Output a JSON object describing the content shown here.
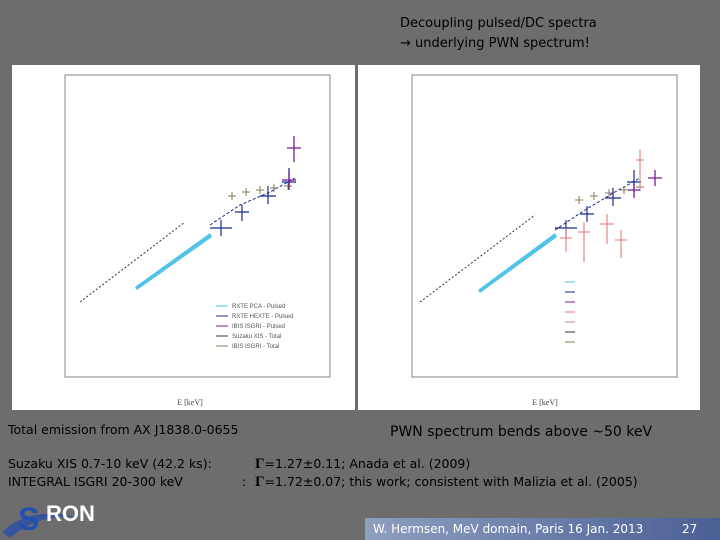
{
  "header": {
    "title_line1": "Decoupling pulsed/DC spectra",
    "title_line2": "→ underlying PWN spectrum!"
  },
  "left_plot": {
    "caption": "Total emission from AX J1838.0-0655",
    "x_label": "E [keV]",
    "legend": [
      "RXTE PCA - Pulsed",
      "RXTE HEXTE - Pulsed",
      "IBIS ISGRI - Pulsed",
      "Suzaku XIS - Total",
      "IBIS ISGRI - Total"
    ]
  },
  "right_plot": {
    "caption": "PWN spectrum bends above ~50 keV",
    "x_label": "E [keV]"
  },
  "notes": [
    {
      "instrument": "Suzaku XIS 0.7-10 keV (42.2 ks):",
      "gamma": "Γ",
      "result": "=1.27±0.11; Anada et al. (2009)"
    },
    {
      "instrument": "INTEGRAL ISGRI 20-300 keV",
      "separator": ":",
      "gamma": "Γ",
      "result": "=1.72±0.07; this work; consistent with Malizia et al. (2005)"
    }
  ],
  "logo": {
    "initial": "S",
    "rest": "RON"
  },
  "footer": {
    "credit": "W. Hermsen, MeV domain, Paris 16 Jan. 2013",
    "page": "27"
  }
}
